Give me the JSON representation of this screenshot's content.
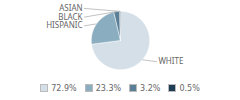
{
  "chart_data": {
    "type": "pie",
    "categories": [
      "WHITE",
      "HISPANIC",
      "BLACK",
      "ASIAN"
    ],
    "values": [
      72.9,
      23.3,
      3.2,
      0.5
    ],
    "value_labels": [
      "72.9%",
      "23.3%",
      "3.2%",
      "0.5%"
    ],
    "colors": [
      "#d4dfe8",
      "#8aaec0",
      "#5a7f96",
      "#1d3d54"
    ],
    "legend": "bottom"
  }
}
